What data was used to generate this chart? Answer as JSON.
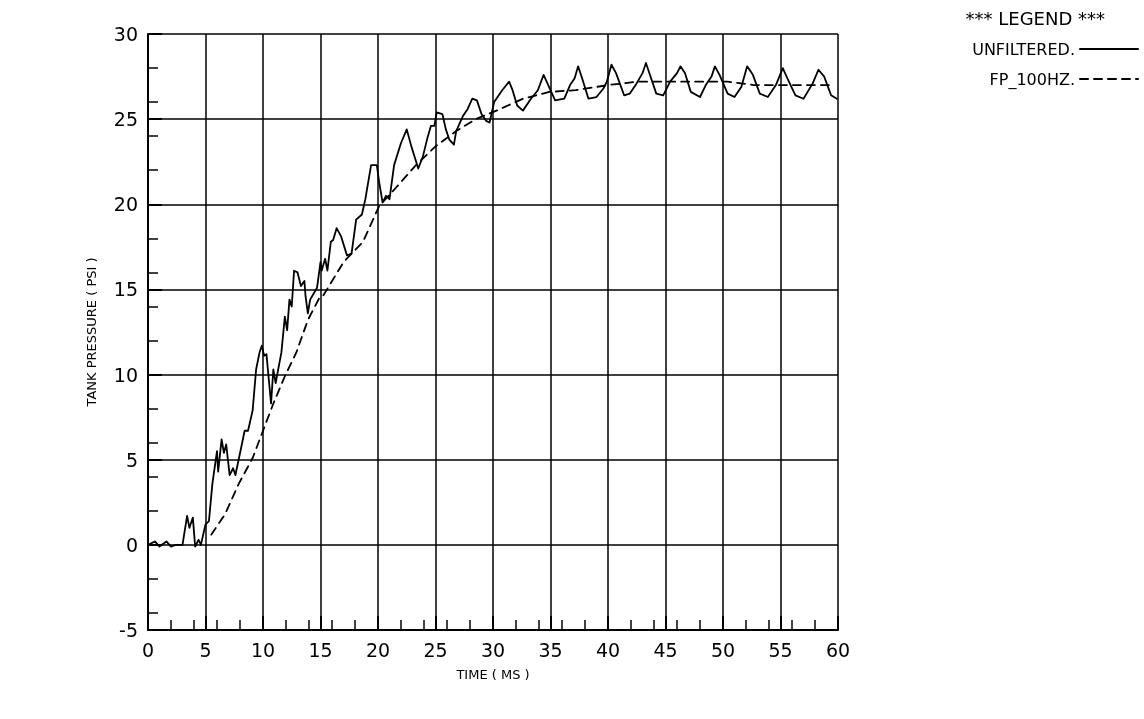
{
  "chart_data": {
    "type": "line",
    "xlabel": "TIME ( MS )",
    "ylabel": "TANK PRESSURE ( PSI )",
    "legend_title": "*** LEGEND ***",
    "xlim": [
      0,
      60
    ],
    "xticks": [
      0,
      5,
      10,
      15,
      20,
      25,
      30,
      35,
      40,
      45,
      50,
      55,
      60
    ],
    "ylim": [
      -5,
      30
    ],
    "yticks": [
      -5,
      0,
      5,
      10,
      15,
      20,
      25,
      30
    ],
    "grid": true,
    "legend": "top right",
    "marker": "none",
    "series": [
      {
        "name": "UNFILTERED.",
        "color": "#000000",
        "line_style": "solid",
        "x": [
          0,
          0.6,
          1,
          1.6,
          2,
          2.4,
          3,
          3.4,
          3.6,
          3.9,
          4.1,
          4.4,
          4.6,
          5,
          5.3,
          5.6,
          6,
          6.1,
          6.4,
          6.6,
          6.8,
          7.1,
          7.4,
          7.6,
          8.1,
          8.4,
          8.7,
          9.1,
          9.4,
          9.7,
          9.9,
          10.1,
          10.3,
          10.7,
          10.9,
          11.1,
          11.6,
          11.9,
          12.1,
          12.3,
          12.5,
          12.7,
          13,
          13.3,
          13.6,
          13.7,
          13.9,
          14.1,
          14.7,
          15,
          15.1,
          15.4,
          15.6,
          15.9,
          16.1,
          16.4,
          16.8,
          17.3,
          17.7,
          18.1,
          18.6,
          18.9,
          19.4,
          19.9,
          20.1,
          20.4,
          20.7,
          21,
          21.4,
          22,
          22.5,
          22.9,
          23.5,
          23.9,
          24.3,
          24.6,
          24.9,
          25.1,
          25.6,
          25.9,
          26.2,
          26.6,
          26.8,
          27.4,
          27.8,
          28.2,
          28.6,
          29,
          29.4,
          29.7,
          30.1,
          30.8,
          31.4,
          31.7,
          32.1,
          32.6,
          33.3,
          33.9,
          34.4,
          35,
          35.4,
          36.2,
          36.7,
          37.1,
          37.4,
          37.7,
          38.3,
          39,
          39.6,
          39.9,
          40.3,
          40.7,
          41.4,
          41.9,
          42.4,
          43,
          43.3,
          43.6,
          44.2,
          44.8,
          45.4,
          46,
          46.3,
          46.7,
          47.2,
          48,
          48.5,
          49,
          49.3,
          49.7,
          50.4,
          51,
          51.6,
          52.1,
          52.6,
          53.2,
          53.9,
          54.6,
          55.2,
          55.6,
          56.3,
          57,
          57.8,
          58.3,
          58.8,
          59.4,
          59.9
        ],
        "values": [
          0,
          0.2,
          -0.1,
          0.2,
          -0.1,
          0,
          0,
          1.7,
          1,
          1.6,
          -0.1,
          0.3,
          0,
          1.2,
          1.4,
          3.6,
          5.5,
          4.3,
          6.2,
          5.4,
          5.9,
          4.1,
          4.5,
          4.1,
          5.7,
          6.7,
          6.7,
          7.9,
          10.3,
          11.3,
          11.7,
          11.1,
          11.2,
          8.3,
          10.3,
          9.5,
          11.3,
          13.4,
          12.6,
          14.4,
          14,
          16.1,
          16,
          15.2,
          15.5,
          14.6,
          13.6,
          14.4,
          15.1,
          16.6,
          16.1,
          16.8,
          16.1,
          17.8,
          17.9,
          18.6,
          18.1,
          17,
          17.1,
          19.1,
          19.4,
          20.3,
          22.3,
          22.3,
          21.3,
          20.1,
          20.5,
          20.3,
          22.3,
          23.6,
          24.4,
          23.4,
          22.1,
          22.8,
          23.9,
          24.6,
          24.6,
          25.4,
          25.3,
          24.4,
          23.8,
          23.5,
          24.3,
          25.2,
          25.6,
          26.2,
          26.1,
          25.3,
          24.9,
          24.8,
          26,
          26.7,
          27.2,
          26.7,
          25.8,
          25.5,
          26.2,
          26.7,
          27.6,
          26.7,
          26.1,
          26.2,
          27,
          27.4,
          28.1,
          27.5,
          26.2,
          26.3,
          26.8,
          27.2,
          28.2,
          27.7,
          26.4,
          26.5,
          27,
          27.7,
          28.3,
          27.7,
          26.5,
          26.4,
          27.2,
          27.7,
          28.1,
          27.7,
          26.6,
          26.3,
          27,
          27.5,
          28.1,
          27.6,
          26.5,
          26.3,
          26.9,
          28.1,
          27.6,
          26.5,
          26.3,
          27,
          28,
          27.4,
          26.4,
          26.2,
          27.1,
          27.9,
          27.5,
          26.4,
          26.2
        ]
      },
      {
        "name": "FP_100HZ.",
        "color": "#000000",
        "line_style": "dashed",
        "x": [
          5.5,
          6.7,
          7.9,
          9.1,
          10,
          10.9,
          11.9,
          12.9,
          13.9,
          14.9,
          15.2,
          17,
          18.7,
          20.1,
          21.6,
          23.3,
          25,
          26.8,
          28.5,
          30.3,
          32.6,
          34.9,
          37.2,
          40,
          42.6,
          45.2,
          47.8,
          50.4,
          52.7,
          55.3,
          57.9,
          59.6
        ],
        "values": [
          0.6,
          1.8,
          3.6,
          5.1,
          6.7,
          8.3,
          9.9,
          11.3,
          13.2,
          14.5,
          14.6,
          16.6,
          17.8,
          19.9,
          21,
          22.3,
          23.4,
          24.3,
          25,
          25.5,
          26.2,
          26.6,
          26.7,
          27,
          27.2,
          27.2,
          27.2,
          27.2,
          27,
          27,
          27,
          27
        ]
      }
    ]
  }
}
